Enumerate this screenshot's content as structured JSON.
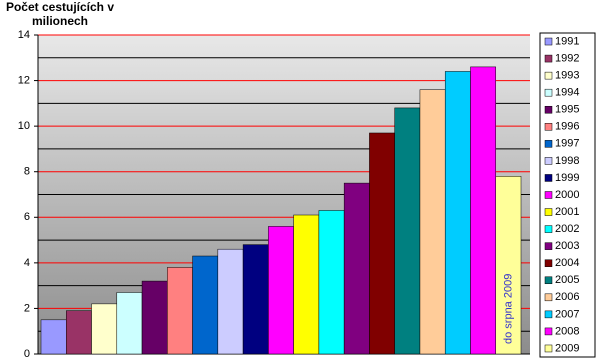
{
  "chart_data": {
    "type": "bar",
    "title": "Počet cestujících v milionech",
    "categories": [
      "1991",
      "1992",
      "1993",
      "1994",
      "1995",
      "1996",
      "1997",
      "1998",
      "1999",
      "2000",
      "2001",
      "2002",
      "2003",
      "2004",
      "2005",
      "2006",
      "2007",
      "2008",
      "2009"
    ],
    "values": [
      1.5,
      1.9,
      2.2,
      2.7,
      3.2,
      3.8,
      4.3,
      4.6,
      4.8,
      5.6,
      6.1,
      6.3,
      7.5,
      9.7,
      10.8,
      11.6,
      12.4,
      12.6,
      7.8
    ],
    "colors": [
      "#9999ff",
      "#993366",
      "#ffffcc",
      "#ccffff",
      "#660066",
      "#ff8080",
      "#0066cc",
      "#ccccff",
      "#000080",
      "#ff00ff",
      "#ffff00",
      "#00ffff",
      "#800080",
      "#800000",
      "#008080",
      "#ffcc99",
      "#00ccff",
      "#ff00ff",
      "#ffff99"
    ],
    "annotation": "do srpna 2009",
    "annotation_color": "#3333cc",
    "ylim": [
      0,
      14
    ],
    "yticks": [
      0,
      2,
      4,
      6,
      8,
      10,
      12,
      14
    ],
    "minor_yticks": [
      1,
      3,
      5,
      7,
      9,
      11,
      13
    ],
    "grid": true,
    "grid_color": "#ff0000",
    "minor_grid_color": "#000000",
    "legend": "right"
  }
}
